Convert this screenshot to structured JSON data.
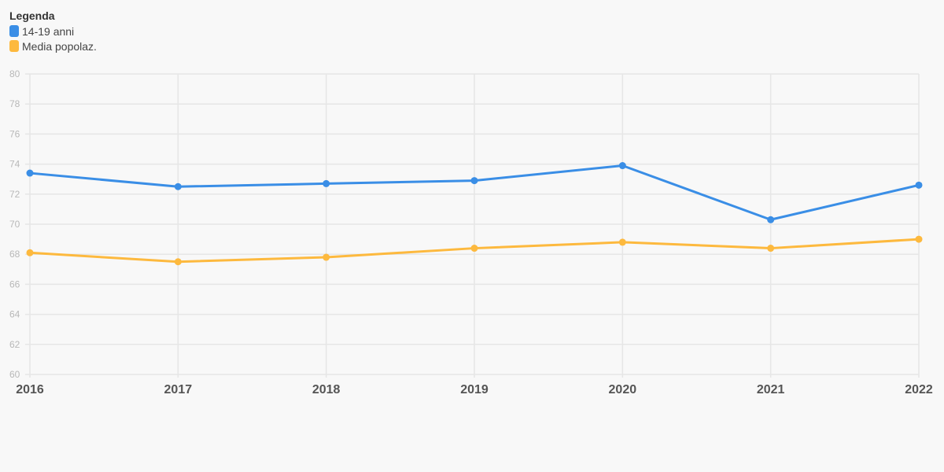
{
  "chart_data": {
    "type": "line",
    "title": "",
    "xlabel": "",
    "ylabel": "",
    "x": [
      "2016",
      "2017",
      "2018",
      "2019",
      "2020",
      "2021",
      "2022"
    ],
    "ylim": [
      60,
      80
    ],
    "yticks": [
      "60",
      "62",
      "64",
      "66",
      "68",
      "70",
      "72",
      "74",
      "76",
      "78",
      "80"
    ],
    "grid": true,
    "legend": {
      "title": "Legenda",
      "placement": "top-left"
    },
    "series": [
      {
        "name": "14-19 anni",
        "color": "#3a8ee6",
        "values": [
          73.4,
          72.5,
          72.7,
          72.9,
          73.9,
          70.3,
          72.6
        ]
      },
      {
        "name": "Media popolaz.",
        "color": "#fdb93e",
        "values": [
          68.1,
          67.5,
          67.8,
          68.4,
          68.8,
          68.4,
          69.0
        ]
      }
    ]
  }
}
